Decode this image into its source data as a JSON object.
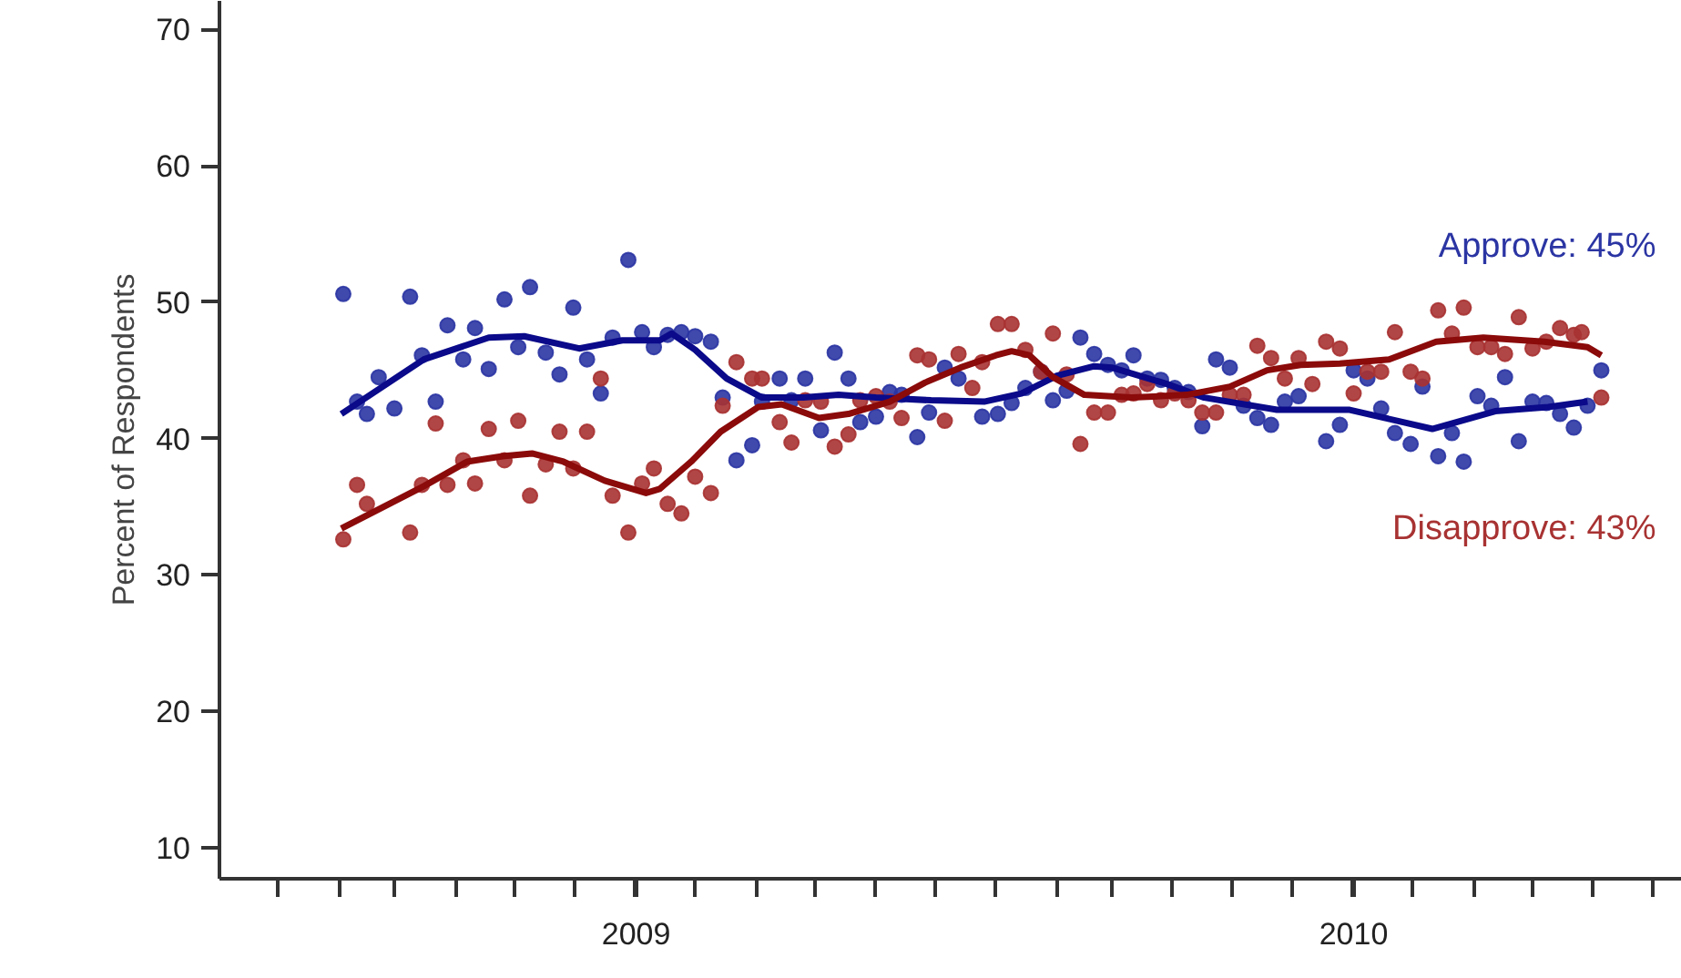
{
  "chart_data": {
    "type": "scatter",
    "ylabel": "Percent of Respondents",
    "ylim": [
      7.7,
      72.1
    ],
    "yticks": [
      10,
      20,
      30,
      40,
      50,
      60,
      70
    ],
    "xlim": [
      "2008-12-02",
      "2010-12-16"
    ],
    "xticks": [
      {
        "value": "2009-01-01",
        "label": null
      },
      {
        "value": "2009-02-01",
        "label": null
      },
      {
        "value": "2009-03-01",
        "label": null
      },
      {
        "value": "2009-04-01",
        "label": null
      },
      {
        "value": "2009-05-01",
        "label": null
      },
      {
        "value": "2009-06-01",
        "label": null
      },
      {
        "value": "2009-07-01",
        "label": null
      },
      {
        "value": "2009-07-02",
        "label": "2009"
      },
      {
        "value": "2009-08-01",
        "label": null
      },
      {
        "value": "2009-09-01",
        "label": null
      },
      {
        "value": "2009-10-01",
        "label": null
      },
      {
        "value": "2009-11-01",
        "label": null
      },
      {
        "value": "2009-12-01",
        "label": null
      },
      {
        "value": "2010-01-01",
        "label": null
      },
      {
        "value": "2010-02-01",
        "label": null
      },
      {
        "value": "2010-03-01",
        "label": null
      },
      {
        "value": "2010-04-01",
        "label": null
      },
      {
        "value": "2010-05-01",
        "label": null
      },
      {
        "value": "2010-06-01",
        "label": null
      },
      {
        "value": "2010-07-01",
        "label": null
      },
      {
        "value": "2010-07-02",
        "label": "2010"
      },
      {
        "value": "2010-08-01",
        "label": null
      },
      {
        "value": "2010-09-01",
        "label": null
      },
      {
        "value": "2010-10-01",
        "label": null
      },
      {
        "value": "2010-11-01",
        "label": null
      },
      {
        "value": "2010-12-01",
        "label": null
      }
    ],
    "grid": false,
    "marker": "circle",
    "series": [
      {
        "name": "Approve: 45%",
        "color": "#2b35a3",
        "x": [
          "2009-02-03",
          "2009-02-10",
          "2009-02-15",
          "2009-02-21",
          "2009-03-01",
          "2009-03-09",
          "2009-03-15",
          "2009-03-22",
          "2009-03-28",
          "2009-04-05",
          "2009-04-11",
          "2009-04-18",
          "2009-04-26",
          "2009-05-03",
          "2009-05-09",
          "2009-05-17",
          "2009-05-24",
          "2009-05-31",
          "2009-06-07",
          "2009-06-14",
          "2009-06-20",
          "2009-06-28",
          "2009-07-05",
          "2009-07-11",
          "2009-07-18",
          "2009-07-25",
          "2009-08-01",
          "2009-08-09",
          "2009-08-15",
          "2009-08-22",
          "2009-08-30",
          "2009-09-04",
          "2009-09-13",
          "2009-09-19",
          "2009-09-26",
          "2009-10-04",
          "2009-10-11",
          "2009-10-18",
          "2009-10-24",
          "2009-11-01",
          "2009-11-08",
          "2009-11-14",
          "2009-11-22",
          "2009-11-28",
          "2009-12-06",
          "2009-12-13",
          "2009-12-25",
          "2010-01-02",
          "2010-01-09",
          "2010-01-16",
          "2010-01-24",
          "2010-01-30",
          "2010-02-06",
          "2010-02-13",
          "2010-02-20",
          "2010-02-27",
          "2010-03-06",
          "2010-03-12",
          "2010-03-19",
          "2010-03-26",
          "2010-04-02",
          "2010-04-09",
          "2010-04-16",
          "2010-04-23",
          "2010-04-30",
          "2010-05-07",
          "2010-05-14",
          "2010-05-21",
          "2010-05-28",
          "2010-06-04",
          "2010-06-18",
          "2010-06-25",
          "2010-07-02",
          "2010-07-09",
          "2010-07-16",
          "2010-07-23",
          "2010-07-31",
          "2010-08-06",
          "2010-08-14",
          "2010-08-21",
          "2010-08-27",
          "2010-09-03",
          "2010-09-10",
          "2010-09-17",
          "2010-09-24",
          "2010-10-01",
          "2010-10-08",
          "2010-10-15",
          "2010-10-22",
          "2010-10-29",
          "2010-11-05"
        ],
        "values": [
          50.6,
          42.7,
          41.8,
          44.5,
          42.2,
          50.4,
          46.1,
          42.7,
          48.3,
          45.8,
          48.1,
          45.1,
          50.2,
          46.7,
          51.1,
          46.3,
          44.7,
          49.6,
          45.8,
          43.3,
          47.4,
          53.1,
          47.8,
          46.7,
          47.6,
          47.8,
          47.5,
          47.1,
          43.0,
          38.4,
          39.5,
          42.7,
          44.4,
          42.8,
          44.4,
          40.6,
          46.3,
          44.4,
          41.2,
          41.6,
          43.4,
          43.2,
          40.1,
          41.9,
          45.2,
          44.4,
          41.6,
          41.8,
          42.6,
          43.7,
          44.9,
          42.8,
          43.5,
          47.4,
          46.2,
          45.4,
          45.0,
          46.1,
          44.4,
          44.3,
          43.7,
          43.4,
          40.9,
          45.8,
          45.2,
          42.4,
          41.5,
          41.0,
          42.7,
          43.1,
          39.8,
          41.0,
          45.0,
          44.4,
          42.2,
          40.4,
          39.6,
          43.8,
          38.7,
          40.4,
          38.3,
          43.1,
          42.4,
          44.5,
          39.8,
          42.7,
          42.6,
          41.8,
          40.8,
          42.4,
          45.0
        ]
      },
      {
        "name": "Disapprove: 43%",
        "color": "#a83232",
        "x": [
          "2009-02-03",
          "2009-02-10",
          "2009-02-15",
          "2009-03-09",
          "2009-03-15",
          "2009-03-22",
          "2009-03-28",
          "2009-04-05",
          "2009-04-11",
          "2009-04-18",
          "2009-04-26",
          "2009-05-03",
          "2009-05-09",
          "2009-05-17",
          "2009-05-24",
          "2009-05-31",
          "2009-06-07",
          "2009-06-14",
          "2009-06-20",
          "2009-06-28",
          "2009-07-05",
          "2009-07-11",
          "2009-07-18",
          "2009-07-25",
          "2009-08-01",
          "2009-08-09",
          "2009-08-15",
          "2009-08-22",
          "2009-08-30",
          "2009-09-04",
          "2009-09-13",
          "2009-09-19",
          "2009-09-26",
          "2009-10-04",
          "2009-10-11",
          "2009-10-18",
          "2009-10-24",
          "2009-11-01",
          "2009-11-08",
          "2009-11-14",
          "2009-11-22",
          "2009-11-28",
          "2009-12-06",
          "2009-12-13",
          "2009-12-20",
          "2009-12-25",
          "2010-01-02",
          "2010-01-09",
          "2010-01-16",
          "2010-01-24",
          "2010-01-30",
          "2010-02-06",
          "2010-02-13",
          "2010-02-20",
          "2010-02-27",
          "2010-03-06",
          "2010-03-12",
          "2010-03-19",
          "2010-03-26",
          "2010-04-02",
          "2010-04-09",
          "2010-04-16",
          "2010-04-23",
          "2010-04-30",
          "2010-05-07",
          "2010-05-14",
          "2010-05-21",
          "2010-05-28",
          "2010-06-04",
          "2010-06-11",
          "2010-06-18",
          "2010-06-25",
          "2010-07-02",
          "2010-07-09",
          "2010-07-16",
          "2010-07-23",
          "2010-07-31",
          "2010-08-06",
          "2010-08-14",
          "2010-08-21",
          "2010-08-27",
          "2010-09-03",
          "2010-09-10",
          "2010-09-17",
          "2010-09-24",
          "2010-10-01",
          "2010-10-08",
          "2010-10-15",
          "2010-10-22",
          "2010-10-26",
          "2010-11-05"
        ],
        "values": [
          32.6,
          36.6,
          35.2,
          33.1,
          36.6,
          41.1,
          36.6,
          38.4,
          36.7,
          40.7,
          38.4,
          41.3,
          35.8,
          38.1,
          40.5,
          37.8,
          40.5,
          44.4,
          35.8,
          33.1,
          36.7,
          37.8,
          35.2,
          34.5,
          37.2,
          36.0,
          42.4,
          45.6,
          44.4,
          44.4,
          41.2,
          39.7,
          42.8,
          42.7,
          39.4,
          40.3,
          42.8,
          43.1,
          42.7,
          41.5,
          46.1,
          45.8,
          41.3,
          46.2,
          43.7,
          45.6,
          48.4,
          48.4,
          46.5,
          44.9,
          47.7,
          44.7,
          39.6,
          41.9,
          41.9,
          43.2,
          43.3,
          44.0,
          42.8,
          43.3,
          42.8,
          41.9,
          41.9,
          43.2,
          43.2,
          46.8,
          45.9,
          44.4,
          45.9,
          44.0,
          47.1,
          46.6,
          43.3,
          44.9,
          44.9,
          47.8,
          44.9,
          44.4,
          49.4,
          47.7,
          49.6,
          46.7,
          46.7,
          46.2,
          48.9,
          46.6,
          47.1,
          48.1,
          47.6,
          47.8,
          43.0
        ]
      },
      {
        "type": "line",
        "marker": "none",
        "color": "#0a0a8a",
        "x": [
          "2009-02-02",
          "2009-03-16",
          "2009-04-18",
          "2009-05-06",
          "2009-06-03",
          "2009-06-25",
          "2009-07-14",
          "2009-07-20",
          "2009-08-01",
          "2009-08-17",
          "2009-09-04",
          "2009-09-25",
          "2009-10-13",
          "2009-11-01",
          "2009-11-29",
          "2009-12-26",
          "2010-01-14",
          "2010-02-01",
          "2010-02-20",
          "2010-03-01",
          "2010-03-29",
          "2010-04-17",
          "2010-05-24",
          "2010-06-30",
          "2010-08-11",
          "2010-09-12",
          "2010-10-09",
          "2010-10-29"
        ],
        "values": [
          41.8,
          45.8,
          47.4,
          47.5,
          46.6,
          47.2,
          47.2,
          47.7,
          46.5,
          44.4,
          43.0,
          43.0,
          43.2,
          43.0,
          42.8,
          42.7,
          43.3,
          44.6,
          45.3,
          45.2,
          44.0,
          43.0,
          42.1,
          42.1,
          40.7,
          42.0,
          42.3,
          42.7
        ]
      },
      {
        "type": "line",
        "marker": "none",
        "color": "#8b0a0a",
        "x": [
          "2009-02-02",
          "2009-03-16",
          "2009-04-07",
          "2009-04-25",
          "2009-05-10",
          "2009-05-26",
          "2009-06-16",
          "2009-07-07",
          "2009-07-14",
          "2009-07-30",
          "2009-08-14",
          "2009-09-02",
          "2009-09-14",
          "2009-10-03",
          "2009-10-18",
          "2009-11-08",
          "2009-11-26",
          "2009-12-14",
          "2010-01-01",
          "2010-01-09",
          "2010-01-18",
          "2010-01-30",
          "2010-02-15",
          "2010-03-11",
          "2010-04-08",
          "2010-04-30",
          "2010-05-19",
          "2010-06-05",
          "2010-06-25",
          "2010-07-20",
          "2010-08-13",
          "2010-09-06",
          "2010-10-07",
          "2010-10-29",
          "2010-11-05"
        ],
        "values": [
          33.4,
          36.5,
          38.3,
          38.7,
          38.9,
          38.3,
          36.9,
          36.0,
          36.3,
          38.3,
          40.5,
          42.3,
          42.5,
          41.5,
          41.8,
          42.7,
          44.1,
          45.2,
          46.1,
          46.4,
          46.1,
          44.5,
          43.2,
          43.0,
          43.2,
          43.8,
          45.0,
          45.4,
          45.5,
          45.8,
          47.1,
          47.4,
          47.1,
          46.7,
          46.1
        ]
      }
    ]
  }
}
